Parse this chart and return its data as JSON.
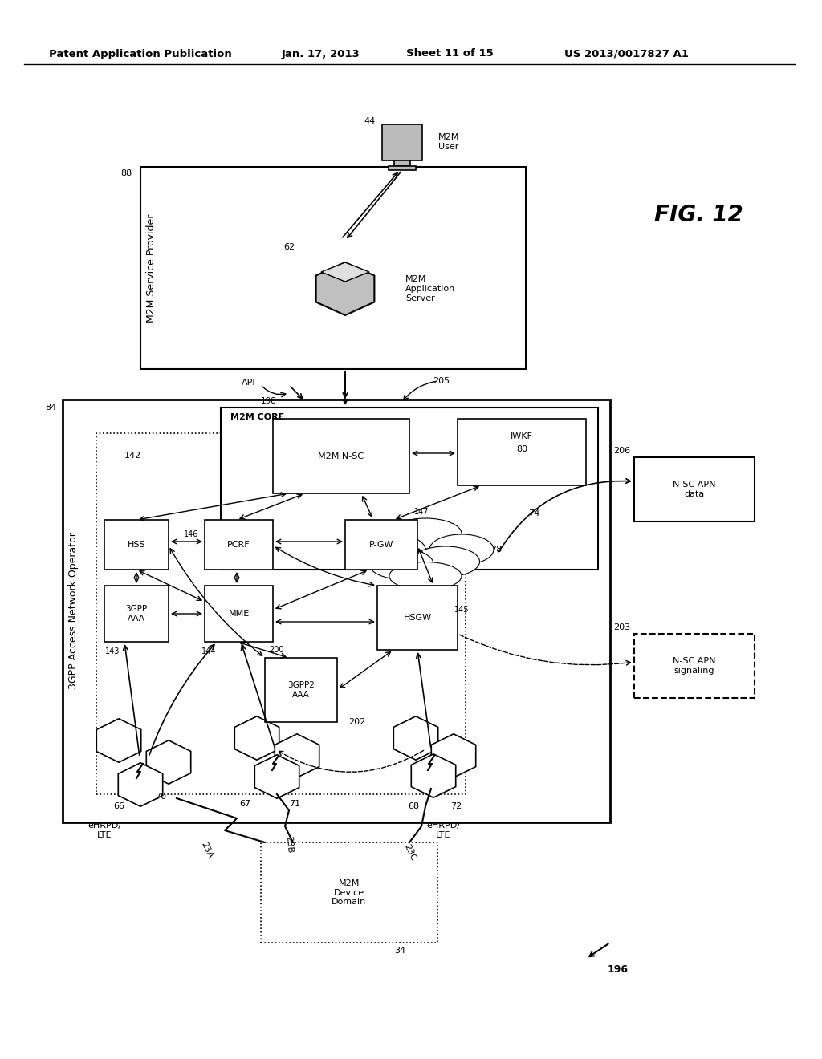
{
  "bg_color": "#ffffff",
  "header_text": "Patent Application Publication",
  "header_date": "Jan. 17, 2013",
  "header_sheet": "Sheet 11 of 15",
  "header_patent": "US 2013/0017827 A1",
  "fig_label": "FIG. 12"
}
